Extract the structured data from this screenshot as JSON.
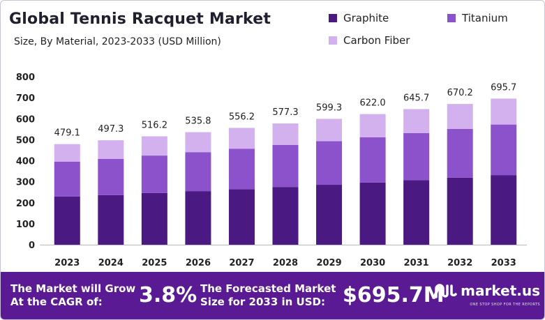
{
  "header": {
    "title": "Global Tennis Racquet Market",
    "subtitle": "Size, By Material, 2023-2033 (USD Million)"
  },
  "colors": {
    "graphite": "#4a1982",
    "titanium": "#8c52cc",
    "carbon_fiber": "#d3b1ee",
    "footer_bg": "#5a1a94"
  },
  "chart_data": {
    "type": "bar",
    "stacked": true,
    "title": "Global Tennis Racquet Market",
    "subtitle": "Size, By Material, 2023-2033 (USD Million)",
    "categories": [
      "2023",
      "2024",
      "2025",
      "2026",
      "2027",
      "2028",
      "2029",
      "2030",
      "2031",
      "2032",
      "2033"
    ],
    "series": [
      {
        "name": "Graphite",
        "color": "#4a1982",
        "values": [
          229.5,
          236.3,
          246.0,
          255.2,
          264.5,
          275.0,
          285.3,
          296.3,
          307.6,
          319.2,
          331.5
        ]
      },
      {
        "name": "Titanium",
        "color": "#8c52cc",
        "values": [
          165.6,
          172.0,
          178.5,
          185.5,
          192.7,
          199.8,
          207.5,
          215.3,
          223.6,
          232.0,
          240.7
        ]
      },
      {
        "name": "Carbon Fiber",
        "color": "#d3b1ee",
        "values": [
          84.0,
          89.0,
          91.7,
          95.1,
          99.0,
          102.5,
          106.5,
          110.4,
          114.5,
          119.0,
          123.5
        ]
      }
    ],
    "totals": [
      "479.1",
      "497.3",
      "516.2",
      "535.8",
      "556.2",
      "577.3",
      "599.3",
      "622.0",
      "645.7",
      "670.2",
      "695.7"
    ],
    "yticks": [
      "0",
      "100",
      "200",
      "300",
      "400",
      "500",
      "600",
      "700",
      "800"
    ],
    "ylim": [
      0,
      800
    ],
    "xlabel": "",
    "ylabel": "",
    "legend_position": "top-right",
    "grid": false
  },
  "footer": {
    "cagr_label_line1": "The Market will Grow",
    "cagr_label_line2": "At the CAGR of:",
    "cagr_value": "3.8%",
    "forecast_label_line1": "The Forecasted Market",
    "forecast_label_line2": "Size for 2033 in USD:",
    "forecast_value": "$695.7M",
    "brand_name": "market.us",
    "brand_tagline": "ONE STOP SHOP FOR THE REPORTS"
  }
}
